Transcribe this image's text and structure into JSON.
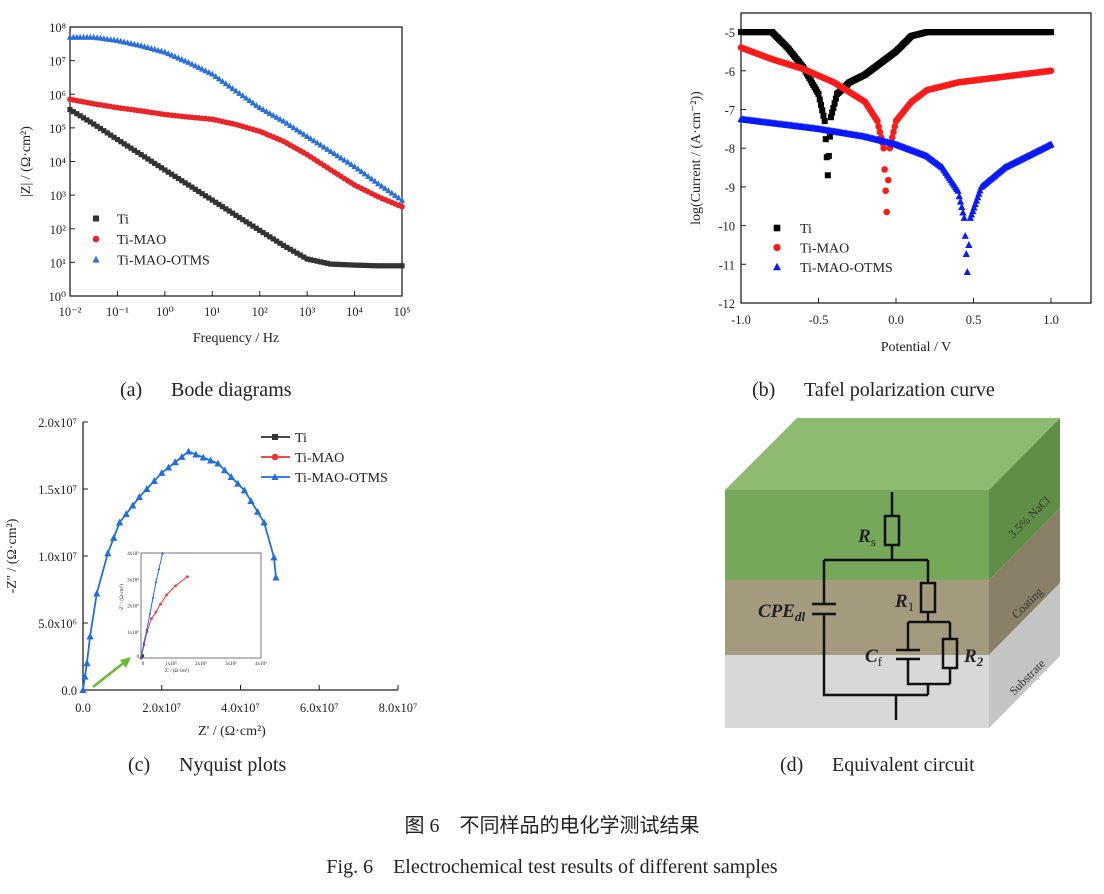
{
  "chart_data": [
    {
      "panel": "(a)",
      "type": "scatter",
      "caption": "Bode diagrams",
      "xlabel": "Frequency / Hz",
      "ylabel": "|Z| / (Ω·cm²)",
      "xscale": "log",
      "yscale": "log",
      "xlim": [
        0.01,
        100000
      ],
      "ylim": [
        1,
        100000000
      ],
      "xticks": [
        "10⁻²",
        "10⁻¹",
        "10⁰",
        "10¹",
        "10²",
        "10³",
        "10⁴",
        "10⁵"
      ],
      "yticks": [
        "10⁰",
        "10¹",
        "10²",
        "10³",
        "10⁴",
        "10⁵",
        "10⁶",
        "10⁷",
        "10⁸"
      ],
      "legend_position": "bottom-left",
      "x": [
        0.01,
        0.0316,
        0.1,
        0.316,
        1,
        3.16,
        10,
        31.6,
        100,
        316,
        1000,
        3162,
        10000,
        31623,
        100000
      ],
      "series": [
        {
          "name": "Ti",
          "marker": "square",
          "color": "#333333",
          "values": [
            350000,
            130000,
            45000,
            16000,
            5600,
            2000,
            710,
            250,
            89,
            32,
            12.6,
            8.9,
            8.3,
            7.9,
            7.9
          ]
        },
        {
          "name": "Ti-MAO",
          "marker": "circle",
          "color": "#e8262a",
          "values": [
            710000,
            520000,
            400000,
            320000,
            250000,
            210000,
            180000,
            126000,
            79000,
            40000,
            16000,
            5600,
            2000,
            890,
            450
          ]
        },
        {
          "name": "Ti-MAO-OTMS",
          "marker": "triangle",
          "color": "#2a6fdb",
          "values": [
            50000000,
            50000000,
            40000000,
            28000000,
            18000000,
            8900000,
            4000000,
            1260000,
            400000,
            160000,
            56000,
            20000,
            7100,
            2200,
            710
          ]
        }
      ]
    },
    {
      "panel": "(b)",
      "type": "scatter",
      "caption": "Tafel polarization curve",
      "xlabel": "Potential / V",
      "ylabel": "log(Current / (A·cm⁻²))",
      "xlim": [
        -1.0,
        1.25
      ],
      "ylim": [
        -12,
        -4.5
      ],
      "xticks": [
        "-1.0",
        "-0.5",
        "0.0",
        "0.5",
        "1.0"
      ],
      "yticks": [
        "-5",
        "-6",
        "-7",
        "-8",
        "-9",
        "-10",
        "-11",
        "-12"
      ],
      "legend_position": "bottom-left",
      "series": [
        {
          "name": "Ti",
          "marker": "square",
          "color": "#000000",
          "x": [
            -1,
            -0.8,
            -0.7,
            -0.6,
            -0.5,
            -0.46,
            -0.44,
            -0.42,
            -0.38,
            -0.3,
            -0.2,
            -0.1,
            0,
            0.1,
            0.2,
            1.0
          ],
          "values": [
            -5,
            -5,
            -5.4,
            -5.9,
            -6.6,
            -7.3,
            -8.7,
            -7.2,
            -6.6,
            -6.3,
            -6.1,
            -5.8,
            -5.5,
            -5.1,
            -5.0,
            -5.0
          ]
        },
        {
          "name": "Ti-MAO",
          "marker": "circle",
          "color": "#ff1a1a",
          "x": [
            -1,
            -0.8,
            -0.6,
            -0.4,
            -0.2,
            -0.12,
            -0.08,
            -0.06,
            -0.04,
            0,
            0.1,
            0.2,
            0.4,
            0.6,
            0.8,
            1.0
          ],
          "values": [
            -5.4,
            -5.7,
            -5.95,
            -6.3,
            -6.8,
            -7.3,
            -8.0,
            -9.65,
            -8.0,
            -7.3,
            -6.8,
            -6.5,
            -6.3,
            -6.2,
            -6.1,
            -6.0
          ]
        },
        {
          "name": "Ti-MAO-OTMS",
          "marker": "triangle",
          "color": "#0a1aff",
          "x": [
            -1,
            -0.5,
            -0.2,
            0,
            0.2,
            0.3,
            0.4,
            0.44,
            0.46,
            0.48,
            0.55,
            0.7,
            0.85,
            1.0
          ],
          "values": [
            -7.25,
            -7.5,
            -7.7,
            -7.9,
            -8.2,
            -8.5,
            -9.1,
            -9.8,
            -11.2,
            -9.8,
            -9.0,
            -8.5,
            -8.2,
            -7.9
          ]
        }
      ]
    },
    {
      "panel": "(c)",
      "type": "line",
      "caption": "Nyquist plots",
      "xlabel": "Z' / (Ω·cm²)",
      "ylabel": "-Z'' / (Ω·cm²)",
      "xlim": [
        0,
        80000000
      ],
      "ylim": [
        0,
        20000000
      ],
      "xticks": [
        "0.0",
        "2.0x10⁷",
        "4.0x10⁷",
        "6.0x10⁷",
        "8.0x10⁷"
      ],
      "yticks": [
        "0.0",
        "5.0x10⁶",
        "1.0x10⁷",
        "1.5x10⁷",
        "2.0x10⁷"
      ],
      "legend_position": "top-right",
      "series": [
        {
          "name": "Ti",
          "marker": "square",
          "color": "#333333",
          "x": [
            0,
            2000,
            4000,
            6500
          ],
          "values": [
            0,
            3000,
            6000,
            9200
          ]
        },
        {
          "name": "Ti-MAO",
          "marker": "circle",
          "color": "#ee3333",
          "x": [
            0,
            10000,
            20000,
            35000,
            50000,
            65000,
            85000,
            115000,
            155000
          ],
          "values": [
            0,
            50000,
            100000,
            150000,
            175000,
            205000,
            240000,
            275000,
            310000
          ]
        },
        {
          "name": "Ti-MAO-OTMS",
          "marker": "triangle",
          "color": "#1f6fe0",
          "x": [
            0,
            500000,
            1000000,
            1800000,
            3500000,
            6300000,
            9300000,
            14300000,
            20000000,
            26800000,
            34300000,
            41000000,
            46000000,
            48500000,
            49000000
          ],
          "values": [
            0,
            1000000,
            2000000,
            4000000,
            7200000,
            10200000,
            12500000,
            14400000,
            16200000,
            17800000,
            16900000,
            14900000,
            12500000,
            9900000,
            8400000
          ]
        }
      ],
      "inset": {
        "xlim": [
          0,
          400000
        ],
        "ylim": [
          0,
          400000
        ],
        "xticks": [
          "0",
          "1x10⁵",
          "2x10⁵",
          "3x10⁵",
          "4x10⁵"
        ],
        "yticks": [
          "0",
          "1x10⁵",
          "2x10⁵",
          "3x10⁵",
          "4x10⁵"
        ],
        "xlabel": "Z' / (Ω·cm²)",
        "ylabel": "-Z'' / (Ω·cm²)",
        "series_x_otms": [
          0,
          10000,
          20000,
          30000,
          40000,
          50000,
          60000,
          72000
        ],
        "series_y_otms": [
          0,
          60000,
          110000,
          170000,
          230000,
          290000,
          340000,
          400000
        ]
      }
    }
  ],
  "circuit": {
    "panel": "(d)",
    "caption": "Equivalent circuit",
    "elements": {
      "Rs": {
        "main": "R",
        "sub": "s"
      },
      "R1": {
        "main": "R",
        "sub": "1"
      },
      "R2": {
        "main": "R",
        "sub": "2"
      },
      "Cf": {
        "main": "C",
        "sub": "f"
      },
      "CPE": {
        "main": "CPE",
        "sub": "dl"
      }
    },
    "layers": [
      "3.5% NaCl",
      "Coating",
      "Substrate"
    ],
    "colors": {
      "solution": "#7aad5e",
      "coating": "#a79d82",
      "substrate": "#d6d6d6"
    }
  },
  "figure": {
    "caption_cn": "图 6　不同样品的电化学测试结果",
    "caption_en": "Fig. 6　Electrochemical test results of different samples"
  }
}
